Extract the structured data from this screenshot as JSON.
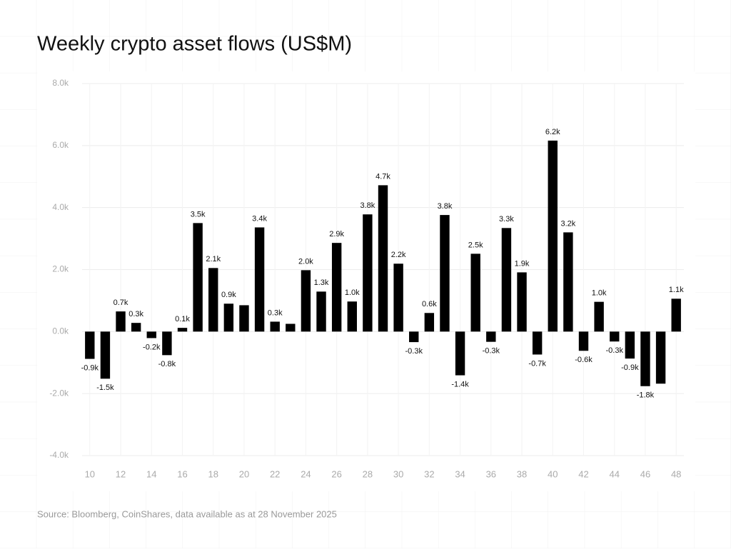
{
  "chart_data": {
    "type": "bar",
    "title": "Weekly crypto asset flows (US$M)",
    "source": "Source: Bloomberg, CoinShares, data available as at 28 November 2025",
    "x": [
      10,
      11,
      12,
      13,
      14,
      15,
      16,
      17,
      18,
      19,
      20,
      21,
      22,
      23,
      24,
      25,
      26,
      27,
      28,
      29,
      30,
      31,
      32,
      33,
      34,
      35,
      36,
      37,
      38,
      39,
      40,
      41,
      42,
      43,
      44,
      45,
      46,
      47,
      48
    ],
    "values": [
      -880,
      -1520,
      650,
      280,
      -210,
      -760,
      120,
      3500,
      2050,
      900,
      850,
      3360,
      320,
      250,
      1980,
      1290,
      2860,
      970,
      3780,
      4720,
      2190,
      -340,
      600,
      3760,
      -1410,
      2510,
      -330,
      3340,
      1910,
      -740,
      6160,
      3200,
      -620,
      960,
      -320,
      -870,
      -1760,
      -1680,
      1060
    ],
    "value_labels": [
      "-0.9k",
      "-1.5k",
      "0.7k",
      "0.3k",
      "-0.2k",
      "-0.8k",
      "0.1k",
      "3.5k",
      "2.1k",
      "0.9k",
      null,
      "3.4k",
      "0.3k",
      null,
      "2.0k",
      "1.3k",
      "2.9k",
      "1.0k",
      "3.8k",
      "4.7k",
      "2.2k",
      "-0.3k",
      "0.6k",
      "3.8k",
      "-1.4k",
      "2.5k",
      "-0.3k",
      "3.3k",
      "1.9k",
      "-0.7k",
      "6.2k",
      "3.2k",
      "-0.6k",
      "1.0k",
      "-0.3k",
      "-0.9k",
      "-1.8k",
      null,
      "1.1k"
    ],
    "color": "#000000",
    "xlim": [
      9.5,
      48.5
    ],
    "xticks": [
      10,
      12,
      14,
      16,
      18,
      20,
      22,
      24,
      26,
      28,
      30,
      32,
      34,
      36,
      38,
      40,
      42,
      44,
      46,
      48
    ],
    "ylim": [
      -4000,
      8000
    ],
    "yticks": [
      {
        "value": -4000,
        "label": "-4.0k"
      },
      {
        "value": -2000,
        "label": "-2.0k"
      },
      {
        "value": 0,
        "label": "0.0k"
      },
      {
        "value": 2000,
        "label": "2.0k"
      },
      {
        "value": 4000,
        "label": "4.0k"
      },
      {
        "value": 6000,
        "label": "6.0k"
      },
      {
        "value": 8000,
        "label": "8.0k"
      }
    ],
    "grid": true
  }
}
